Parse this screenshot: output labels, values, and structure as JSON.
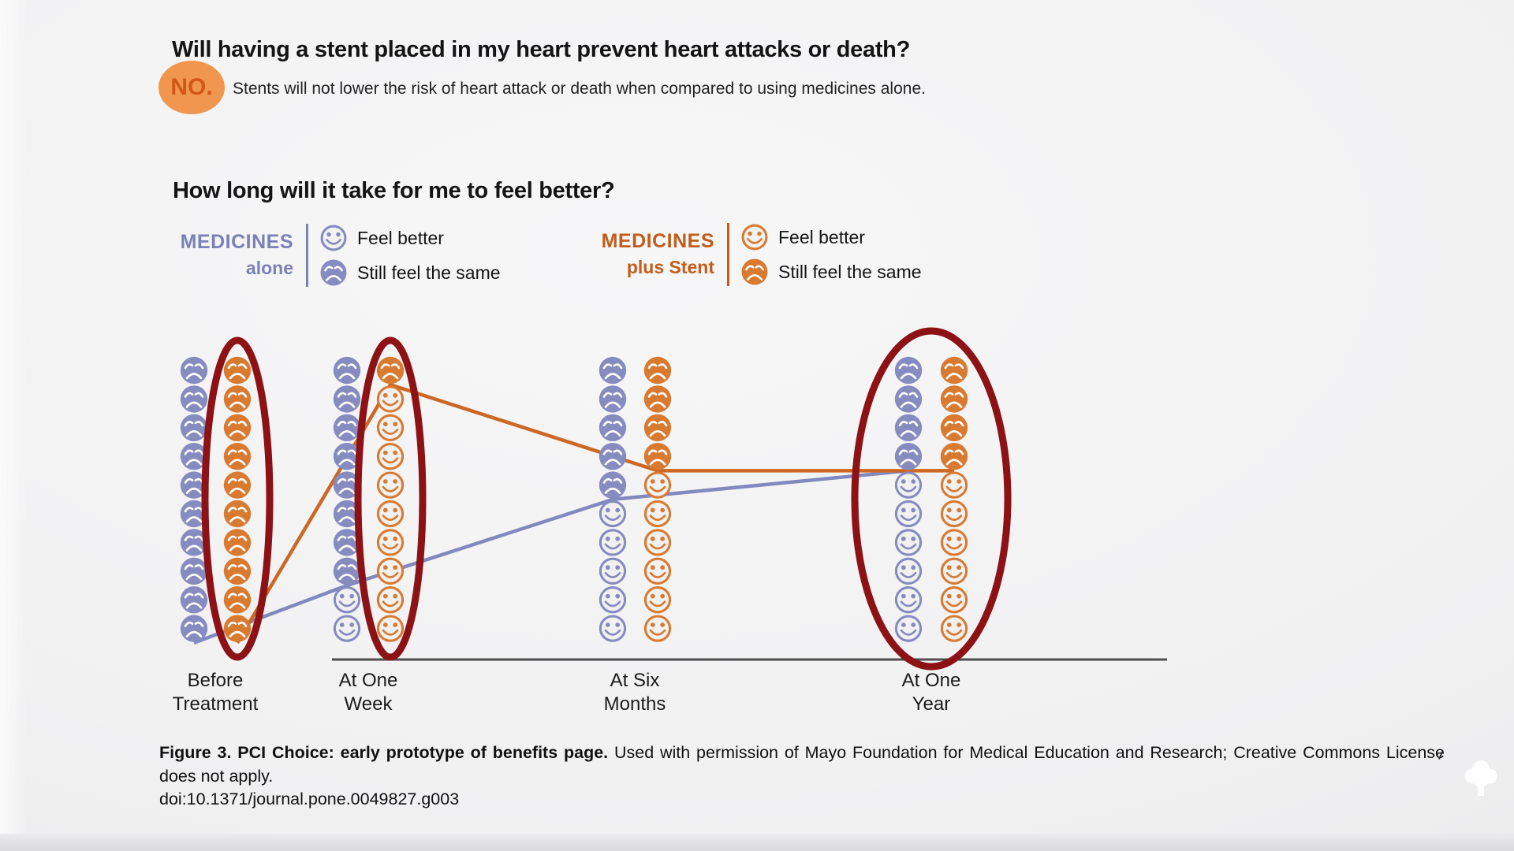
{
  "header": {
    "question": "Will having a stent placed in my heart prevent heart attacks or death?",
    "answer_badge": "NO.",
    "answer_badge_bg": "#f0964f",
    "answer_badge_color": "#d05715",
    "answer_text": "Stents will not lower the risk of heart attack or death when compared to using medicines alone."
  },
  "section": {
    "question": "How long will it take for me to feel better?"
  },
  "legend_left": {
    "title_line1": "MEDICINES",
    "title_line2": "alone",
    "title_color": "#7a81b8",
    "face_color": "#868cc0",
    "feel_better_label": "Feel better",
    "still_same_label": "Still feel the same"
  },
  "legend_right": {
    "title_line1": "MEDICINES",
    "title_line2": "plus Stent",
    "title_color": "#c25c1b",
    "face_color": "#d97a31",
    "feel_better_label": "Feel better",
    "still_same_label": "Still feel the same"
  },
  "chart_data": {
    "type": "pictograph",
    "description": "10 faces per column per treatment; frowning face = still feel the same, smiling face = feel better; trend lines trace the number feeling better over time",
    "faces_per_column": 10,
    "categories": [
      "Before Treatment",
      "At One Week",
      "At Six Months",
      "At One Year"
    ],
    "category_label_lines": [
      [
        "Before",
        "Treatment"
      ],
      [
        "At One",
        "Week"
      ],
      [
        "At Six",
        "Months"
      ],
      [
        "At One",
        "Year"
      ]
    ],
    "series": [
      {
        "name": "Medicines alone",
        "key": "alone",
        "color": "#868cc0",
        "feel_better": [
          0,
          2,
          5,
          6
        ],
        "still_feel_same": [
          10,
          8,
          5,
          4
        ]
      },
      {
        "name": "Medicines plus Stent",
        "key": "stent",
        "color": "#d97a31",
        "feel_better": [
          0,
          9,
          6,
          6
        ],
        "still_feel_same": [
          10,
          1,
          4,
          4
        ]
      }
    ],
    "highlight_ellipses": [
      {
        "category_index": 0,
        "series": [
          "stent"
        ]
      },
      {
        "category_index": 1,
        "series": [
          "stent"
        ]
      },
      {
        "category_index": 3,
        "series": [
          "alone",
          "stent"
        ]
      }
    ],
    "highlight_color": "#8d1216",
    "trend_line_colors": {
      "alone": "#8289bf",
      "stent": "#cc6724"
    },
    "baseline_color": "#4d4d4d"
  },
  "caption": {
    "bold": "Figure 3. PCI Choice: early prototype of benefits page.",
    "regular": "Used with permission of Mayo Foundation for Medical Education and Research; Creative Commons License does not apply.",
    "doi": "doi:10.1371/journal.pone.0049827.g003"
  }
}
